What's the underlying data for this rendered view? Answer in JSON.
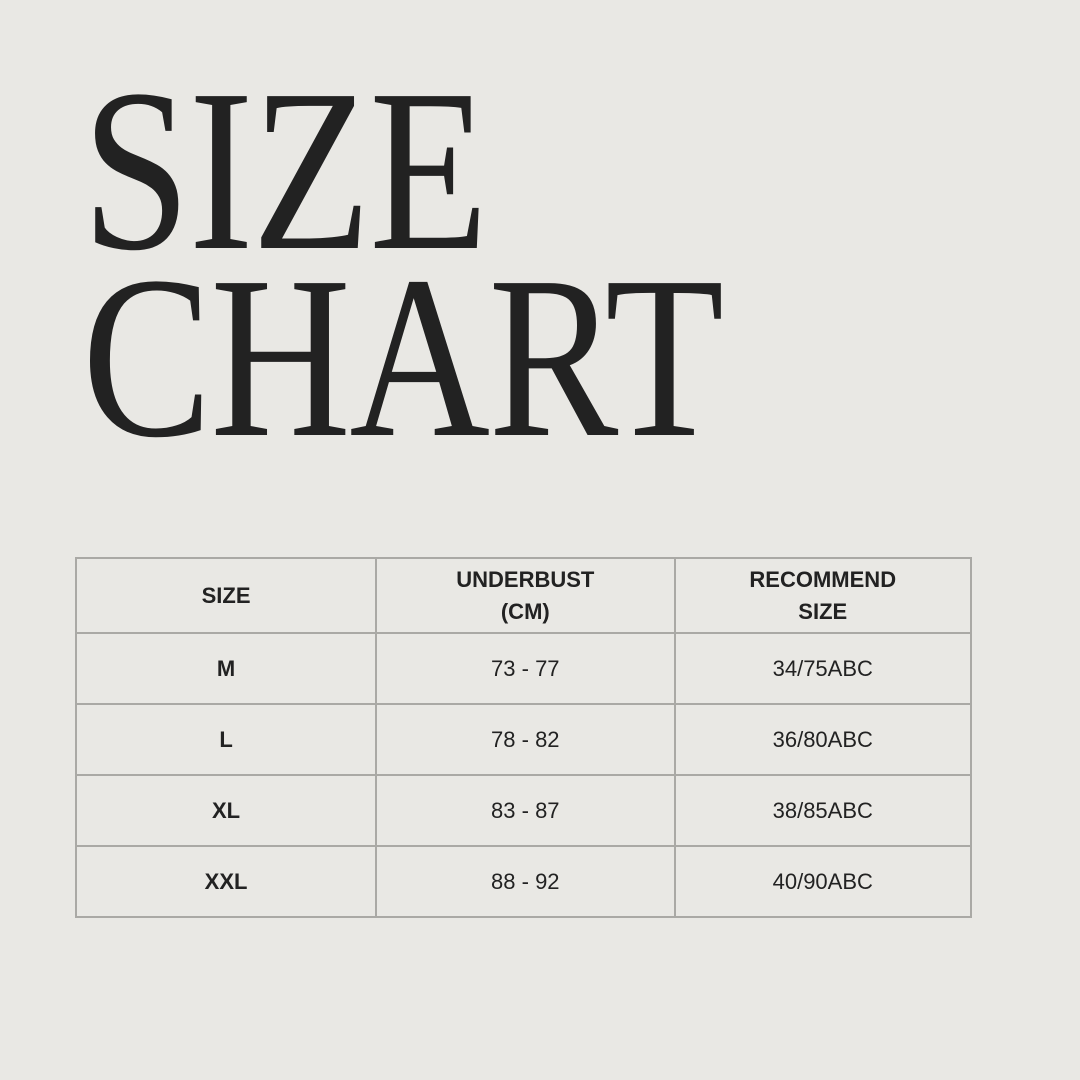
{
  "title": {
    "line1": "SIZE",
    "line2": "CHART"
  },
  "table": {
    "headers": [
      {
        "line1": "SIZE",
        "line2": ""
      },
      {
        "line1": "UNDERBUST",
        "line2": "(CM)"
      },
      {
        "line1": "RECOMMEND",
        "line2": "SIZE"
      }
    ],
    "rows": [
      {
        "size": "M",
        "underbust": "73 - 77",
        "recommend": "34/75ABC"
      },
      {
        "size": "L",
        "underbust": "78 - 82",
        "recommend": "36/80ABC"
      },
      {
        "size": "XL",
        "underbust": "83 - 87",
        "recommend": "38/85ABC"
      },
      {
        "size": "XXL",
        "underbust": "88 - 92",
        "recommend": "40/90ABC"
      }
    ]
  },
  "colors": {
    "background": "#e9e8e4",
    "text": "#222222",
    "border": "#aaa9a5"
  }
}
